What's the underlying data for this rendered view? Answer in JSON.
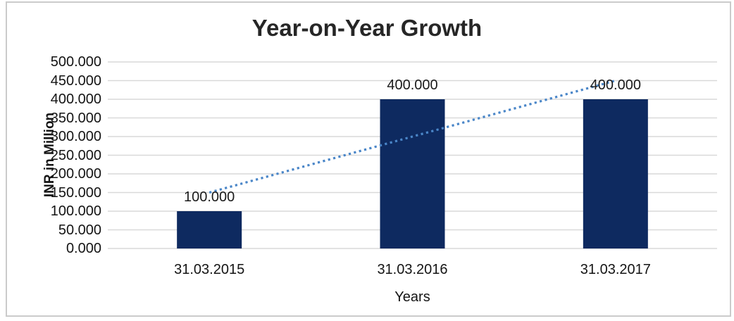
{
  "chart_data": {
    "type": "bar",
    "title": "Year-on-Year Growth",
    "categories": [
      "31.03.2015",
      "31.03.2016",
      "31.03.2017"
    ],
    "values": [
      100,
      400,
      400
    ],
    "data_labels": [
      "100.000",
      "400.000",
      "400.000"
    ],
    "xlabel": "Years",
    "ylabel": "INR in Million",
    "ylim": [
      0,
      500
    ],
    "ytick_step": 50,
    "ytick_labels": [
      "0.000",
      "50.000",
      "100.000",
      "150.000",
      "200.000",
      "250.000",
      "300.000",
      "350.000",
      "400.000",
      "450.000",
      "500.000"
    ],
    "grid": "horizontal",
    "legend": "none",
    "colors": {
      "bar": "#0E2A60",
      "gridline": "#d9d9d9",
      "trendline": "#4A86C8",
      "text": "#141414",
      "border": "#cbcbcb"
    },
    "trendline": {
      "type": "linear",
      "style": "dotted",
      "start_value": 150,
      "end_value": 450
    }
  }
}
